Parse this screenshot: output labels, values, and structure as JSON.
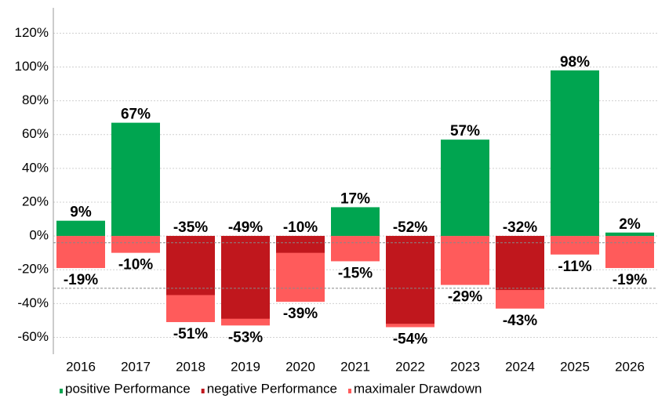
{
  "chart_data": {
    "type": "bar",
    "categories": [
      "2016",
      "2017",
      "2018",
      "2019",
      "2020",
      "2021",
      "2022",
      "2023",
      "2024",
      "2025",
      "2026"
    ],
    "series": [
      {
        "name": "maximaler Drawdown",
        "color": "#ff5b5b",
        "values": [
          -19,
          -10,
          -51,
          -53,
          -39,
          -15,
          -54,
          -29,
          -43,
          -11,
          -19
        ],
        "value_labels": [
          "-19%",
          "-10%",
          "-51%",
          "-53%",
          "-39%",
          "-15%",
          "-54%",
          "-29%",
          "-43%",
          "-11%",
          "-19%"
        ]
      },
      {
        "name": "positive Performance",
        "color": "#00a550",
        "values": [
          9,
          67,
          null,
          null,
          null,
          17,
          null,
          57,
          null,
          98,
          2
        ],
        "value_labels": [
          "9%",
          "67%",
          null,
          null,
          null,
          "17%",
          null,
          "57%",
          null,
          "98%",
          "2%"
        ]
      },
      {
        "name": "negative Performance",
        "color": "#c0171d",
        "values": [
          null,
          null,
          -35,
          -49,
          -10,
          null,
          -52,
          null,
          -32,
          null,
          null
        ],
        "value_labels": [
          null,
          null,
          "-35%",
          "-49%",
          "-10%",
          null,
          "-52%",
          null,
          "-32%",
          null,
          null
        ]
      }
    ],
    "legend_order": [
      1,
      2,
      0
    ],
    "ylim": [
      -70,
      135
    ],
    "yticks": [
      {
        "value": -60,
        "label": "-60%"
      },
      {
        "value": -40,
        "label": "-40%"
      },
      {
        "value": -20,
        "label": "-20%"
      },
      {
        "value": 0,
        "label": "0%"
      },
      {
        "value": 20,
        "label": "20%"
      },
      {
        "value": 40,
        "label": "40%"
      },
      {
        "value": 60,
        "label": "60%"
      },
      {
        "value": 80,
        "label": "80%"
      },
      {
        "value": 100,
        "label": "100%"
      },
      {
        "value": 120,
        "label": "120%"
      }
    ],
    "reference_lines": [
      -4,
      -31
    ],
    "grid": true
  }
}
